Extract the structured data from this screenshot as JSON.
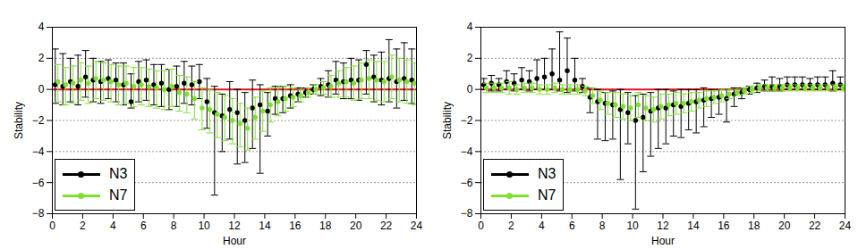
{
  "chart_data": [
    {
      "type": "scatter",
      "x_label": "Hour",
      "y_label": "Stability",
      "x": [
        0.25,
        0.75,
        1.25,
        1.75,
        2.25,
        2.75,
        3.25,
        3.75,
        4.25,
        4.75,
        5.25,
        5.75,
        6.25,
        6.75,
        7.25,
        7.75,
        8.25,
        8.75,
        9.25,
        9.75,
        10.25,
        10.75,
        11.25,
        11.75,
        12.25,
        12.75,
        13.25,
        13.75,
        14.25,
        14.75,
        15.25,
        15.75,
        16.25,
        16.75,
        17.25,
        17.75,
        18.25,
        18.75,
        19.25,
        19.75,
        20.25,
        20.75,
        21.25,
        21.75,
        22.25,
        22.75,
        23.25,
        23.75
      ],
      "xlim": [
        0,
        24
      ],
      "xticks": [
        0,
        2,
        4,
        6,
        8,
        10,
        12,
        14,
        16,
        18,
        20,
        22,
        24
      ],
      "ylim": [
        -8,
        4
      ],
      "yticks": [
        -8,
        -6,
        -4,
        -2,
        0,
        2,
        4
      ],
      "grid": true,
      "legend": "lower left",
      "marker": "circle",
      "hline": {
        "y": 0,
        "color": "#e8141c"
      },
      "series": [
        {
          "name": "N3",
          "color": "#000000",
          "values": [
            0.3,
            0.2,
            0.5,
            0.2,
            0.8,
            0.6,
            0.5,
            0.7,
            0.6,
            0.3,
            -0.8,
            0.5,
            0.6,
            0.3,
            0.4,
            0.0,
            0.2,
            0.4,
            0.3,
            0.5,
            -0.8,
            -1.5,
            -1.7,
            -1.3,
            -1.5,
            -2.0,
            -1.2,
            -1.0,
            -1.4,
            -0.6,
            -0.6,
            -0.4,
            -0.3,
            -0.2,
            0.0,
            0.2,
            0.3,
            0.6,
            0.5,
            0.6,
            0.6,
            1.6,
            0.8,
            0.6,
            0.7,
            0.5,
            0.7,
            0.6
          ],
          "lower": [
            -0.9,
            -1.0,
            -0.8,
            -1.0,
            -0.5,
            -0.8,
            -0.9,
            -0.6,
            -0.8,
            -1.0,
            -1.2,
            -0.8,
            -0.7,
            -1.0,
            -1.1,
            -1.3,
            -1.1,
            -0.9,
            -1.0,
            -0.6,
            -2.5,
            -6.8,
            -4.0,
            -3.2,
            -4.8,
            -4.7,
            -3.8,
            -5.4,
            -3.0,
            -1.6,
            -1.5,
            -1.2,
            -0.8,
            -0.5,
            -0.3,
            -0.4,
            -0.5,
            -0.3,
            -0.6,
            -0.6,
            -0.7,
            -0.3,
            -0.8,
            -1.0,
            -0.8,
            -1.2,
            -0.7,
            -0.9
          ],
          "upper": [
            2.6,
            2.3,
            2.0,
            2.2,
            2.5,
            2.0,
            1.8,
            1.9,
            1.7,
            1.7,
            1.0,
            1.8,
            1.9,
            1.6,
            1.6,
            1.3,
            1.5,
            1.8,
            1.5,
            1.6,
            0.7,
            0.2,
            -0.3,
            0.5,
            0.0,
            -0.2,
            0.6,
            0.3,
            -0.2,
            0.2,
            0.2,
            0.3,
            0.1,
            0.1,
            0.3,
            0.7,
            1.2,
            1.8,
            1.7,
            2.0,
            1.9,
            2.5,
            2.2,
            2.4,
            3.2,
            2.6,
            3.0,
            2.6
          ]
        },
        {
          "name": "N7",
          "color": "#7fe030",
          "values": [
            0.5,
            0.3,
            0.4,
            0.6,
            0.4,
            0.7,
            0.6,
            0.5,
            0.3,
            0.4,
            0.2,
            0.3,
            0.2,
            0.1,
            0.0,
            0.2,
            -0.2,
            -0.3,
            -0.6,
            -1.2,
            -1.3,
            -1.6,
            -1.8,
            -2.0,
            -2.2,
            -2.5,
            -1.8,
            -1.4,
            -1.0,
            -0.8,
            -0.6,
            -0.5,
            -0.4,
            -0.2,
            0.0,
            0.1,
            0.2,
            0.4,
            0.5,
            0.4,
            0.6,
            0.7,
            0.6,
            0.5,
            0.8,
            0.6,
            0.5,
            0.4
          ],
          "lower": [
            -0.8,
            -1.0,
            -0.9,
            -0.7,
            -0.9,
            -0.6,
            -0.7,
            -0.8,
            -1.0,
            -0.9,
            -1.1,
            -1.0,
            -1.1,
            -1.2,
            -1.3,
            -1.1,
            -1.4,
            -1.5,
            -1.9,
            -2.6,
            -2.8,
            -3.1,
            -3.3,
            -3.5,
            -3.7,
            -3.9,
            -3.2,
            -2.7,
            -2.1,
            -1.7,
            -1.4,
            -1.1,
            -0.8,
            -0.5,
            -0.3,
            -0.3,
            -0.5,
            -0.5,
            -0.5,
            -0.7,
            -0.6,
            -0.6,
            -0.7,
            -0.8,
            -0.6,
            -0.8,
            -0.9,
            -1.0
          ],
          "upper": [
            1.6,
            1.4,
            1.5,
            1.7,
            1.5,
            1.8,
            1.7,
            1.6,
            1.5,
            1.5,
            1.4,
            1.4,
            1.3,
            1.2,
            1.2,
            1.3,
            0.9,
            0.8,
            0.5,
            0.1,
            0.0,
            -0.2,
            -0.4,
            -0.6,
            -0.9,
            -1.2,
            -0.5,
            -0.1,
            0.1,
            0.1,
            0.2,
            0.1,
            0.0,
            0.1,
            0.3,
            0.5,
            0.9,
            1.2,
            1.4,
            1.5,
            1.7,
            1.9,
            1.8,
            1.8,
            2.2,
            2.0,
            1.9,
            1.7
          ]
        }
      ]
    },
    {
      "type": "scatter",
      "x_label": "Hour",
      "y_label": "Stability",
      "x": [
        0.25,
        0.75,
        1.25,
        1.75,
        2.25,
        2.75,
        3.25,
        3.75,
        4.25,
        4.75,
        5.25,
        5.75,
        6.25,
        6.75,
        7.25,
        7.75,
        8.25,
        8.75,
        9.25,
        9.75,
        10.25,
        10.75,
        11.25,
        11.75,
        12.25,
        12.75,
        13.25,
        13.75,
        14.25,
        14.75,
        15.25,
        15.75,
        16.25,
        16.75,
        17.25,
        17.75,
        18.25,
        18.75,
        19.25,
        19.75,
        20.25,
        20.75,
        21.25,
        21.75,
        22.25,
        22.75,
        23.25,
        23.75
      ],
      "xlim": [
        0,
        24
      ],
      "xticks": [
        0,
        2,
        4,
        6,
        8,
        10,
        12,
        14,
        16,
        18,
        20,
        22,
        24
      ],
      "ylim": [
        -8,
        4
      ],
      "yticks": [
        -8,
        -6,
        -4,
        -2,
        0,
        2,
        4
      ],
      "grid": true,
      "legend": "lower left",
      "marker": "circle",
      "hline": {
        "y": 0,
        "color": "#e8141c"
      },
      "series": [
        {
          "name": "N3",
          "color": "#000000",
          "values": [
            0.3,
            0.4,
            0.3,
            0.5,
            0.4,
            0.6,
            0.5,
            0.7,
            0.8,
            1.0,
            0.6,
            1.2,
            0.6,
            0.2,
            -0.5,
            -0.8,
            -0.9,
            -1.0,
            -1.3,
            -1.5,
            -2.0,
            -1.8,
            -1.4,
            -1.2,
            -1.2,
            -1.0,
            -1.1,
            -0.9,
            -0.8,
            -0.7,
            -0.6,
            -0.5,
            -0.6,
            -0.3,
            -0.2,
            0.0,
            0.1,
            0.2,
            0.2,
            0.2,
            0.3,
            0.3,
            0.3,
            0.3,
            0.3,
            0.3,
            0.4,
            0.3
          ],
          "lower": [
            0.0,
            -0.1,
            -0.1,
            0.0,
            -0.1,
            0.0,
            -0.1,
            0.0,
            0.0,
            0.0,
            -0.1,
            -0.2,
            -0.1,
            -0.2,
            -1.5,
            -3.2,
            -3.3,
            -3.2,
            -5.8,
            -3.5,
            -7.7,
            -5.3,
            -4.3,
            -3.8,
            -3.5,
            -3.0,
            -3.1,
            -2.6,
            -2.8,
            -2.4,
            -1.8,
            -1.6,
            -2.1,
            -1.1,
            -0.6,
            -0.3,
            -0.2,
            -0.1,
            -0.1,
            -0.1,
            0.0,
            0.0,
            0.0,
            0.0,
            0.0,
            0.0,
            -0.1,
            0.0
          ],
          "upper": [
            0.7,
            0.9,
            0.7,
            1.2,
            1.0,
            1.4,
            1.2,
            1.9,
            2.0,
            2.6,
            3.7,
            3.3,
            2.0,
            0.7,
            0.1,
            0.0,
            -0.2,
            -0.1,
            0.0,
            -0.2,
            -0.4,
            -0.3,
            -0.2,
            0.0,
            0.0,
            -0.1,
            0.0,
            0.0,
            0.0,
            0.1,
            0.0,
            0.0,
            0.0,
            0.1,
            0.1,
            0.2,
            0.4,
            0.6,
            0.8,
            0.7,
            0.8,
            0.8,
            0.8,
            0.7,
            0.8,
            0.8,
            1.2,
            0.8
          ]
        },
        {
          "name": "N7",
          "color": "#7fe030",
          "values": [
            0.1,
            0.1,
            0.1,
            0.1,
            0.0,
            0.1,
            0.1,
            0.0,
            0.0,
            0.1,
            0.0,
            0.0,
            0.0,
            -0.1,
            -0.4,
            -0.7,
            -0.9,
            -1.0,
            -1.1,
            -1.2,
            -1.0,
            -1.2,
            -1.3,
            -1.1,
            -1.0,
            -0.9,
            -0.9,
            -0.8,
            -0.7,
            -0.6,
            -0.5,
            -0.4,
            -0.3,
            -0.2,
            -0.1,
            0.0,
            0.1,
            0.1,
            0.1,
            0.1,
            0.1,
            0.1,
            0.1,
            0.1,
            0.1,
            0.1,
            0.1,
            0.1
          ],
          "lower": [
            -0.2,
            -0.2,
            -0.2,
            -0.3,
            -0.3,
            -0.2,
            -0.2,
            -0.3,
            -0.3,
            -0.2,
            -0.3,
            -0.3,
            -0.3,
            -0.4,
            -0.9,
            -1.3,
            -1.6,
            -1.8,
            -1.9,
            -2.0,
            -1.8,
            -2.0,
            -2.1,
            -1.9,
            -1.7,
            -1.6,
            -1.5,
            -1.4,
            -1.2,
            -1.1,
            -0.9,
            -0.8,
            -0.6,
            -0.4,
            -0.3,
            -0.2,
            -0.1,
            -0.1,
            -0.1,
            -0.1,
            -0.1,
            -0.1,
            -0.1,
            -0.1,
            -0.1,
            -0.1,
            -0.1,
            -0.1
          ],
          "upper": [
            0.4,
            0.4,
            0.4,
            0.5,
            0.3,
            0.4,
            0.4,
            0.3,
            0.3,
            0.4,
            0.3,
            0.3,
            0.3,
            0.2,
            0.1,
            -0.1,
            -0.2,
            -0.2,
            -0.3,
            -0.4,
            -0.2,
            -0.4,
            -0.5,
            -0.3,
            -0.3,
            -0.2,
            -0.3,
            -0.2,
            -0.2,
            -0.1,
            -0.1,
            0.0,
            0.0,
            0.0,
            0.1,
            0.2,
            0.3,
            0.3,
            0.3,
            0.3,
            0.3,
            0.3,
            0.3,
            0.3,
            0.3,
            0.3,
            0.3,
            0.3
          ]
        }
      ]
    }
  ]
}
